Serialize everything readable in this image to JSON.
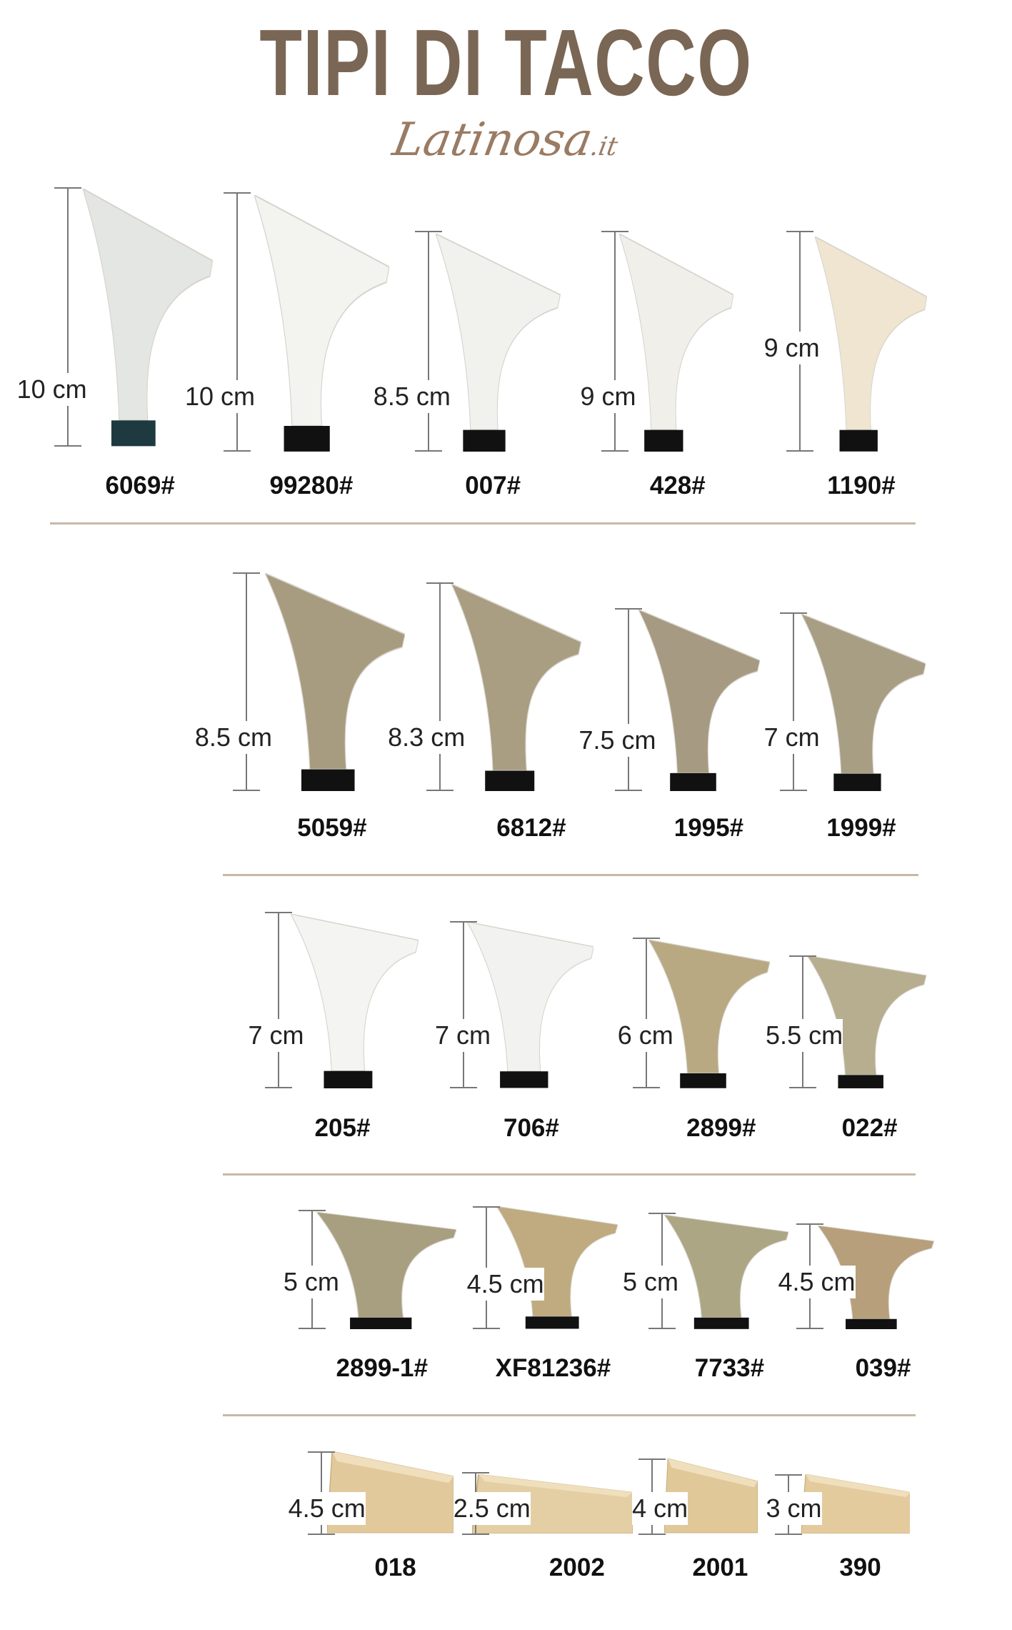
{
  "title": "TIPI DI TACCO",
  "brand": {
    "name": "Latinosa",
    "tld": ".it"
  },
  "rows": [
    {
      "items": [
        {
          "height": "10 cm",
          "code": "6069#",
          "color": "#e4e6e4",
          "tip": "#1e3a40"
        },
        {
          "height": "10 cm",
          "code": "99280#",
          "color": "#f3f3f0",
          "tip": "#111111"
        },
        {
          "height": "8.5 cm",
          "code": "007#",
          "color": "#f1f1ee",
          "tip": "#111111"
        },
        {
          "height": "9 cm",
          "code": "428#",
          "color": "#f0efea",
          "tip": "#111111"
        },
        {
          "height": "9 cm",
          "code": "1190#",
          "color": "#efe5d0",
          "tip": "#111111"
        }
      ]
    },
    {
      "items": [
        {
          "height": "8.5 cm",
          "code": "5059#",
          "color": "#a89c80",
          "tip": "#111111"
        },
        {
          "height": "8.3 cm",
          "code": "6812#",
          "color": "#a99d82",
          "tip": "#111111"
        },
        {
          "height": "7.5 cm",
          "code": "1995#",
          "color": "#a69b82",
          "tip": "#111111"
        },
        {
          "height": "7 cm",
          "code": "1999#",
          "color": "#a89e84",
          "tip": "#111111"
        }
      ]
    },
    {
      "items": [
        {
          "height": "7 cm",
          "code": "205#",
          "color": "#f4f4f2",
          "tip": "#111111"
        },
        {
          "height": "7 cm",
          "code": "706#",
          "color": "#f2f2f0",
          "tip": "#111111"
        },
        {
          "height": "6 cm",
          "code": "2899#",
          "color": "#b9a983",
          "tip": "#111111"
        },
        {
          "height": "5.5 cm",
          "code": "022#",
          "color": "#b6ae8f",
          "tip": "#111111"
        }
      ]
    },
    {
      "items": [
        {
          "height": "5 cm",
          "code": "2899-1#",
          "color": "#a89f80",
          "tip": "#111111"
        },
        {
          "height": "4.5 cm",
          "code": "XF81236#",
          "color": "#bfab7f",
          "tip": "#111111"
        },
        {
          "height": "5 cm",
          "code": "7733#",
          "color": "#ada685",
          "tip": "#111111"
        },
        {
          "height": "4.5 cm",
          "code": "039#",
          "color": "#b79f7b",
          "tip": "#111111"
        }
      ]
    },
    {
      "items": [
        {
          "height": "4.5 cm",
          "code": "018",
          "color": "#e2c99b",
          "tip": "#e2c99b"
        },
        {
          "height": "2.5 cm",
          "code": "2002",
          "color": "#e4cfa4",
          "tip": "#e4cfa4"
        },
        {
          "height": "4 cm",
          "code": "2001",
          "color": "#e0c899",
          "tip": "#e0c899"
        },
        {
          "height": "3 cm",
          "code": "390",
          "color": "#e3cb9e",
          "tip": "#e3cb9e"
        }
      ]
    }
  ]
}
